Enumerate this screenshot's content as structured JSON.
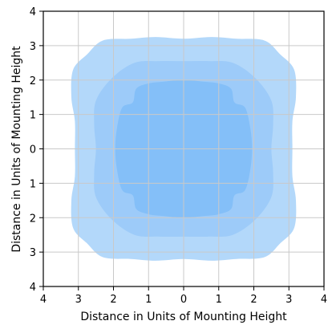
{
  "chart_data": {
    "type": "contour",
    "title": "",
    "xlabel": "Distance in Units of Mounting Height",
    "ylabel": "Distance in Units of Mounting Height",
    "xlim": [
      -4,
      4
    ],
    "ylim": [
      -4,
      4
    ],
    "x_tick_values": [
      -4,
      -3,
      -2,
      -1,
      0,
      1,
      2,
      3,
      4
    ],
    "y_tick_values": [
      -4,
      -3,
      -2,
      -1,
      0,
      1,
      2,
      3,
      4
    ],
    "x_tick_labels": [
      "4",
      "3",
      "2",
      "1",
      "0",
      "1",
      "2",
      "3",
      "4"
    ],
    "y_tick_labels": [
      "4",
      "3",
      "2",
      "1",
      "0",
      "1",
      "2",
      "3",
      "4"
    ],
    "grid": true,
    "legend": "none",
    "series": [
      {
        "level": "outer",
        "color": "#b3d8fa",
        "boundary": [
          [
            0,
            3.2
          ],
          [
            0.8,
            3.25
          ],
          [
            1.5,
            3.2
          ],
          [
            2.3,
            3.15
          ],
          [
            2.75,
            2.75
          ],
          [
            3.15,
            2.3
          ],
          [
            3.2,
            1.5
          ],
          [
            3.1,
            0.8
          ],
          [
            3.1,
            0
          ],
          [
            3.1,
            -0.8
          ],
          [
            3.2,
            -1.5
          ],
          [
            3.15,
            -2.3
          ],
          [
            2.75,
            -2.75
          ],
          [
            2.3,
            -3.15
          ],
          [
            1.5,
            -3.2
          ],
          [
            0.8,
            -3.25
          ],
          [
            0,
            -3.2
          ],
          [
            -0.8,
            -3.25
          ],
          [
            -1.5,
            -3.2
          ],
          [
            -2.3,
            -3.15
          ],
          [
            -2.75,
            -2.75
          ],
          [
            -3.15,
            -2.3
          ],
          [
            -3.2,
            -1.5
          ],
          [
            -3.1,
            -0.8
          ],
          [
            -3.1,
            0
          ],
          [
            -3.1,
            0.8
          ],
          [
            -3.2,
            1.5
          ],
          [
            -3.15,
            2.3
          ],
          [
            -2.75,
            2.75
          ],
          [
            -2.3,
            3.15
          ],
          [
            -1.5,
            3.2
          ],
          [
            -0.8,
            3.25
          ]
        ]
      },
      {
        "level": "middle",
        "color": "#9dcbf9",
        "boundary": [
          [
            0,
            2.55
          ],
          [
            0.7,
            2.55
          ],
          [
            1.4,
            2.5
          ],
          [
            2.05,
            2.05
          ],
          [
            2.5,
            1.4
          ],
          [
            2.55,
            0.7
          ],
          [
            2.5,
            0
          ],
          [
            2.55,
            -0.7
          ],
          [
            2.5,
            -1.4
          ],
          [
            2.05,
            -2.05
          ],
          [
            1.4,
            -2.5
          ],
          [
            0.7,
            -2.55
          ],
          [
            0,
            -2.55
          ],
          [
            -0.7,
            -2.55
          ],
          [
            -1.4,
            -2.5
          ],
          [
            -2.05,
            -2.05
          ],
          [
            -2.5,
            -1.4
          ],
          [
            -2.55,
            -0.7
          ],
          [
            -2.5,
            0
          ],
          [
            -2.55,
            0.7
          ],
          [
            -2.5,
            1.4
          ],
          [
            -2.05,
            2.05
          ],
          [
            -1.4,
            2.5
          ],
          [
            -0.7,
            2.55
          ]
        ]
      },
      {
        "level": "inner",
        "color": "#84bff8",
        "boundary": [
          [
            0,
            2.0
          ],
          [
            0.6,
            1.95
          ],
          [
            1.0,
            1.9
          ],
          [
            1.35,
            1.75
          ],
          [
            1.45,
            1.35
          ],
          [
            1.75,
            1.2
          ],
          [
            1.9,
            0.6
          ],
          [
            1.95,
            0
          ],
          [
            1.9,
            -0.6
          ],
          [
            1.75,
            -1.2
          ],
          [
            1.45,
            -1.35
          ],
          [
            1.35,
            -1.75
          ],
          [
            1.0,
            -1.9
          ],
          [
            0.6,
            -1.95
          ],
          [
            0,
            -2.0
          ],
          [
            -0.6,
            -1.95
          ],
          [
            -1.0,
            -1.9
          ],
          [
            -1.35,
            -1.75
          ],
          [
            -1.45,
            -1.35
          ],
          [
            -1.75,
            -1.2
          ],
          [
            -1.9,
            -0.6
          ],
          [
            -1.95,
            0
          ],
          [
            -1.9,
            0.6
          ],
          [
            -1.75,
            1.2
          ],
          [
            -1.45,
            1.35
          ],
          [
            -1.35,
            1.75
          ],
          [
            -1.0,
            1.9
          ],
          [
            -0.6,
            1.95
          ]
        ]
      }
    ]
  }
}
